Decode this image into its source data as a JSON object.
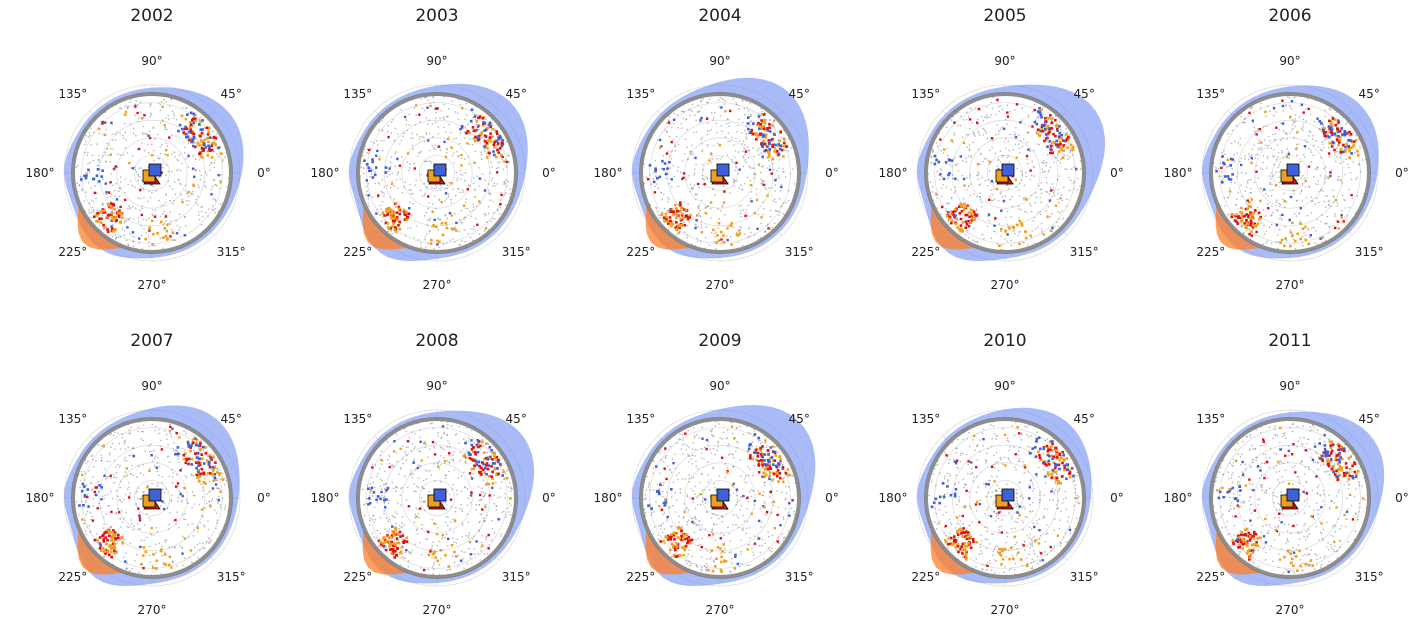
{
  "chart_data": {
    "type": "scatter",
    "subtype": "polar",
    "angle_ticks": [
      "0°",
      "45°",
      "90°",
      "135°",
      "180°",
      "225°",
      "270°",
      "315°"
    ],
    "grid": true,
    "colors": {
      "background_points": "#7a7a7a",
      "blue": "#4060d8",
      "orange": "#f0a020",
      "red": "#e01010",
      "kde_blue": "#6f8ef0",
      "kde_orange": "#ff7f27",
      "grid": "#dddddd"
    },
    "panels": [
      {
        "title": "2002"
      },
      {
        "title": "2003"
      },
      {
        "title": "2004"
      },
      {
        "title": "2005"
      },
      {
        "title": "2006"
      },
      {
        "title": "2007"
      },
      {
        "title": "2008"
      },
      {
        "title": "2009"
      },
      {
        "title": "2010"
      },
      {
        "title": "2011"
      }
    ]
  }
}
